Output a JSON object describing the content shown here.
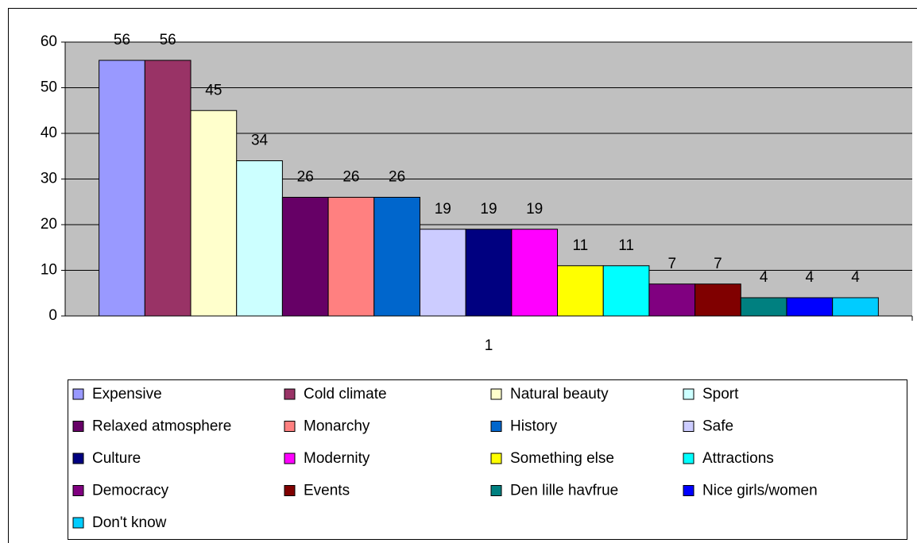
{
  "chart_data": {
    "type": "bar",
    "categories": [
      "1"
    ],
    "series": [
      {
        "name": "Expensive",
        "color": "#9999ff",
        "values": [
          56
        ]
      },
      {
        "name": "Cold climate",
        "color": "#993366",
        "values": [
          56
        ]
      },
      {
        "name": "Natural beauty",
        "color": "#ffffcc",
        "values": [
          45
        ]
      },
      {
        "name": "Sport",
        "color": "#ccffff",
        "values": [
          34
        ]
      },
      {
        "name": "Relaxed atmosphere",
        "color": "#660066",
        "values": [
          26
        ]
      },
      {
        "name": "Monarchy",
        "color": "#ff8080",
        "values": [
          26
        ]
      },
      {
        "name": "History",
        "color": "#0066cc",
        "values": [
          26
        ]
      },
      {
        "name": "Safe",
        "color": "#ccccff",
        "values": [
          19
        ]
      },
      {
        "name": "Culture",
        "color": "#000080",
        "values": [
          19
        ]
      },
      {
        "name": "Modernity",
        "color": "#ff00ff",
        "values": [
          19
        ]
      },
      {
        "name": "Something else",
        "color": "#ffff00",
        "values": [
          11
        ]
      },
      {
        "name": "Attractions",
        "color": "#00ffff",
        "values": [
          11
        ]
      },
      {
        "name": "Democracy",
        "color": "#800080",
        "values": [
          7
        ]
      },
      {
        "name": "Events",
        "color": "#800000",
        "values": [
          7
        ]
      },
      {
        "name": "Den lille havfrue",
        "color": "#008080",
        "values": [
          4
        ]
      },
      {
        "name": "Nice girls/women",
        "color": "#0000ff",
        "values": [
          4
        ]
      },
      {
        "name": "Don't know",
        "color": "#00ccff",
        "values": [
          4
        ]
      }
    ],
    "ylim": [
      0,
      60
    ],
    "yticks": [
      0,
      10,
      20,
      30,
      40,
      50,
      60
    ],
    "grid": true,
    "legend": "bottom"
  }
}
